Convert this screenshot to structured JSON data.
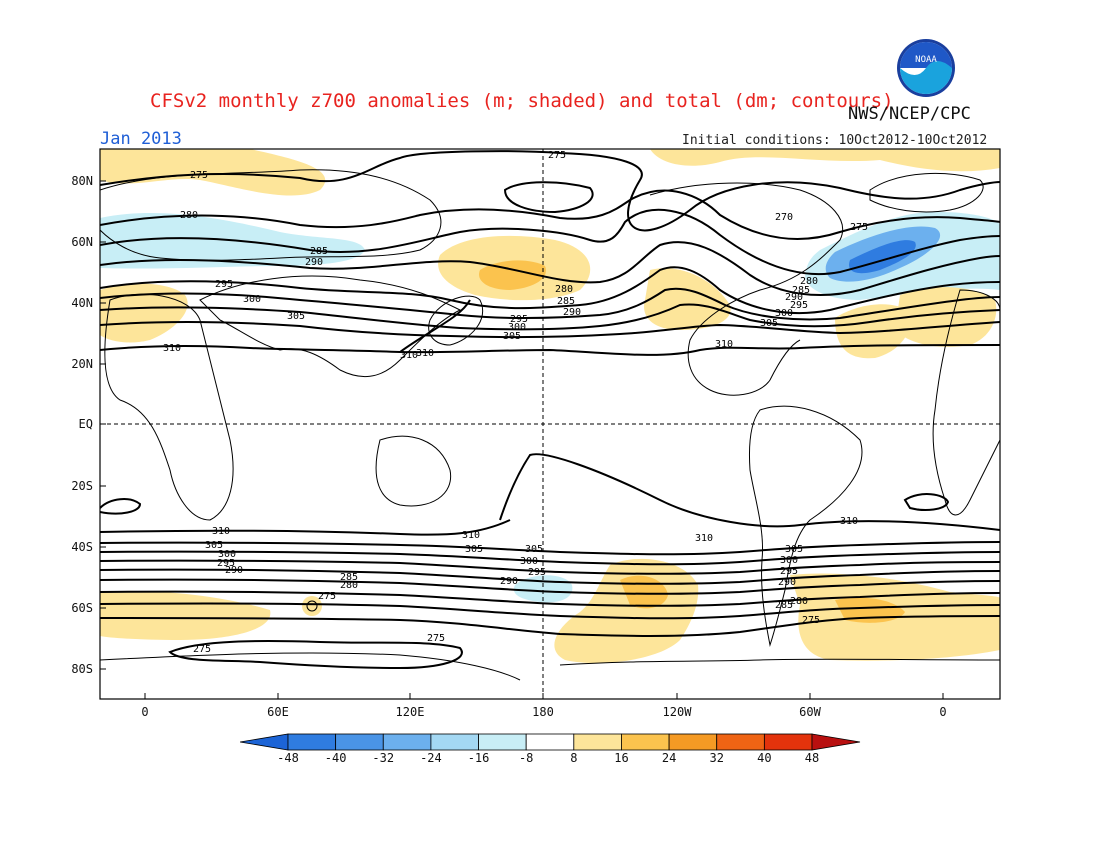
{
  "title": "CFSv2 monthly z700 anomalies (m; shaded) and total (dm; contours)",
  "source": "NWS/NCEP/CPC",
  "logo_text": "NOAA",
  "month": "Jan 2013",
  "initial_conditions": "Initial conditions: 10Oct2012-10Oct2012",
  "lat_labels": [
    "80N",
    "60N",
    "40N",
    "20N",
    "EQ",
    "20S",
    "40S",
    "60S",
    "80S"
  ],
  "lon_labels": [
    "0",
    "60E",
    "120E",
    "180",
    "120W",
    "60W",
    "0"
  ],
  "colorbar": {
    "labels": [
      "-48",
      "-40",
      "-32",
      "-24",
      "-16",
      "-8",
      "8",
      "16",
      "24",
      "32",
      "40",
      "48"
    ],
    "colors": [
      "#1c64d6",
      "#2f7ce0",
      "#4a94e6",
      "#6cb0ee",
      "#a4d8f3",
      "#c8eef6",
      "#ffffff",
      "#fde59a",
      "#fbc34e",
      "#f59a24",
      "#ef6414",
      "#e3330c",
      "#b81010"
    ]
  },
  "contour_labels": [
    "275",
    "275",
    "280",
    "270",
    "275",
    "285",
    "290",
    "295",
    "300",
    "305",
    "310",
    "280",
    "285",
    "290",
    "295",
    "300",
    "305",
    "310",
    "310",
    "310",
    "310",
    "310",
    "310",
    "305",
    "305",
    "300",
    "295",
    "290",
    "285",
    "280",
    "275",
    "275",
    "275",
    "275",
    "290",
    "295",
    "300",
    "305",
    "285",
    "280",
    "290",
    "295",
    "300",
    "305",
    "280",
    "285",
    "290",
    "295",
    "300",
    "305",
    "310"
  ]
}
